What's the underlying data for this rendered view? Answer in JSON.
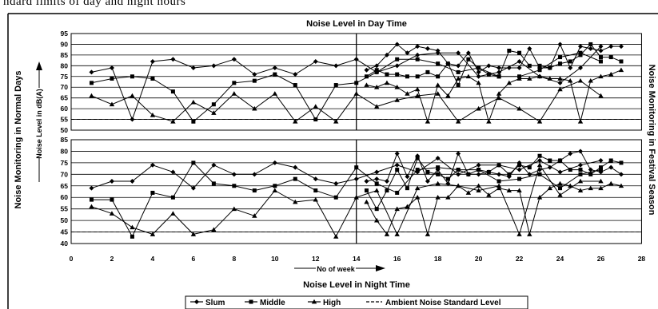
{
  "caption": "ndard limits of day and night hours",
  "labels": {
    "title_top": "Noise Level in Day Time",
    "title_bottom": "Noise Level in Night Time",
    "left_outer": "Noise Monitoring in Normal Days",
    "left_inner": "Noise Level in dB(A)",
    "right_outer": "Noise Monitoring in Festival Season",
    "x_axis": "No of week"
  },
  "legend": [
    {
      "label": "Slum",
      "marker": "diamond"
    },
    {
      "label": "Middle",
      "marker": "square"
    },
    {
      "label": "High",
      "marker": "triangle"
    },
    {
      "label": "Ambient Noise Standard Level",
      "marker": "dash"
    }
  ],
  "colors": {
    "line": "#000000",
    "frame": "#000000",
    "background": "#ffffff"
  },
  "chart_data": [
    {
      "type": "line",
      "panel": "day-normal",
      "x": [
        1,
        2,
        3,
        4,
        5,
        6,
        7,
        8,
        9,
        10,
        11,
        12,
        13,
        14,
        15,
        16,
        17,
        18,
        19,
        20,
        21,
        22,
        23,
        24,
        25,
        26
      ],
      "ylim": [
        50,
        95
      ],
      "yticks": [
        50,
        55,
        60,
        65,
        70,
        75,
        80,
        85,
        90,
        95
      ],
      "standard": 55,
      "series": [
        {
          "name": "Slum",
          "marker": "diamond",
          "values": [
            77,
            79,
            55,
            82,
            83,
            79,
            80,
            83,
            76,
            79,
            76,
            82,
            80,
            83,
            77,
            80,
            85,
            86,
            86,
            75,
            77,
            82,
            75,
            72,
            79,
            89
          ]
        },
        {
          "name": "Middle",
          "marker": "square",
          "values": [
            72,
            74,
            75,
            74,
            68,
            54,
            62,
            72,
            73,
            76,
            71,
            55,
            71,
            72,
            77,
            83,
            83,
            81,
            77,
            79,
            75,
            75,
            78,
            84,
            86,
            82
          ]
        },
        {
          "name": "High",
          "marker": "triangle",
          "values": [
            66,
            62,
            66,
            57,
            54,
            63,
            58,
            67,
            60,
            67,
            54,
            61,
            54,
            67,
            61,
            64,
            66,
            67,
            54,
            60,
            65,
            60,
            54,
            69,
            73,
            66
          ]
        }
      ]
    },
    {
      "type": "line",
      "panel": "day-festival",
      "x": [
        1,
        2,
        3,
        4,
        5,
        6,
        7,
        8,
        9,
        10,
        11,
        12,
        13,
        14,
        15,
        16,
        17,
        18,
        19,
        20,
        21,
        22,
        23,
        24,
        25,
        26
      ],
      "ylim": [
        50,
        95
      ],
      "yticks": [
        50,
        55,
        60,
        65,
        70,
        75,
        80,
        85,
        90,
        95
      ],
      "standard": 55,
      "series": [
        {
          "name": "Slum",
          "marker": "diamond",
          "values": [
            78,
            80,
            85,
            90,
            86,
            89,
            88,
            87,
            81,
            80,
            86,
            77,
            80,
            79,
            79,
            79,
            88,
            79,
            79,
            90,
            79,
            89,
            88,
            87,
            89,
            89
          ]
        },
        {
          "name": "Middle",
          "marker": "square",
          "values": [
            75,
            78,
            76,
            76,
            75,
            75,
            77,
            75,
            81,
            71,
            83,
            79,
            76,
            75,
            87,
            86,
            80,
            80,
            79,
            81,
            82,
            85,
            90,
            84,
            84,
            82
          ]
        },
        {
          "name": "High",
          "marker": "triangle",
          "values": [
            71,
            70,
            72,
            70,
            67,
            69,
            54,
            71,
            66,
            74,
            75,
            72,
            54,
            67,
            72,
            74,
            74,
            75,
            74,
            74,
            73,
            54,
            73,
            75,
            76,
            78
          ]
        }
      ]
    },
    {
      "type": "line",
      "panel": "night-normal",
      "x": [
        1,
        2,
        3,
        4,
        5,
        6,
        7,
        8,
        9,
        10,
        11,
        12,
        13,
        14,
        15,
        16,
        17,
        18,
        19,
        20,
        21,
        22,
        23,
        24,
        25,
        26
      ],
      "ylim": [
        40,
        85
      ],
      "yticks": [
        40,
        45,
        50,
        55,
        60,
        65,
        70,
        75,
        80,
        85
      ],
      "standard": 45,
      "series": [
        {
          "name": "Slum",
          "marker": "diamond",
          "values": [
            64,
            67,
            67,
            74,
            71,
            64,
            74,
            70,
            70,
            75,
            73,
            68,
            66,
            68,
            71,
            74,
            71,
            77,
            70,
            74,
            74,
            72,
            76,
            71,
            74,
            76
          ]
        },
        {
          "name": "Middle",
          "marker": "square",
          "values": [
            59,
            59,
            43,
            62,
            60,
            75,
            66,
            65,
            63,
            65,
            68,
            63,
            60,
            73,
            66,
            62,
            72,
            73,
            72,
            72,
            67,
            68,
            70,
            64,
            70,
            72
          ]
        },
        {
          "name": "High",
          "marker": "triangle",
          "values": [
            56,
            53,
            47,
            44,
            53,
            44,
            46,
            55,
            52,
            63,
            58,
            59,
            43,
            60,
            63,
            44,
            64,
            66,
            65,
            63,
            65,
            44,
            74,
            61,
            67,
            67
          ]
        }
      ]
    },
    {
      "type": "line",
      "panel": "night-festival",
      "x": [
        1,
        2,
        3,
        4,
        5,
        6,
        7,
        8,
        9,
        10,
        11,
        12,
        13,
        14,
        15,
        16,
        17,
        18,
        19,
        20,
        21,
        22,
        23,
        24,
        25,
        26
      ],
      "ylim": [
        40,
        85
      ],
      "yticks": [
        40,
        45,
        50,
        55,
        60,
        65,
        70,
        75,
        80,
        85
      ],
      "standard": 45,
      "series": [
        {
          "name": "Slum",
          "marker": "diamond",
          "values": [
            67,
            68,
            67,
            79,
            69,
            78,
            67,
            72,
            66,
            79,
            70,
            70,
            71,
            70,
            69,
            75,
            70,
            72,
            73,
            76,
            79,
            80,
            72,
            71,
            73,
            70
          ]
        },
        {
          "name": "Middle",
          "marker": "square",
          "values": [
            63,
            55,
            63,
            72,
            64,
            77,
            71,
            70,
            68,
            72,
            70,
            72,
            71,
            74,
            70,
            74,
            73,
            78,
            76,
            76,
            72,
            72,
            70,
            73,
            76,
            75
          ]
        },
        {
          "name": "High",
          "marker": "triangle",
          "values": [
            58,
            50,
            44,
            55,
            56,
            60,
            44,
            60,
            60,
            65,
            62,
            65,
            61,
            64,
            63,
            63,
            44,
            60,
            64,
            66,
            65,
            63,
            64,
            64,
            66,
            65
          ]
        }
      ]
    }
  ],
  "x_axis_ticks": [
    0,
    2,
    4,
    6,
    8,
    10,
    12,
    14,
    16,
    18,
    20,
    22,
    24,
    26,
    28
  ]
}
